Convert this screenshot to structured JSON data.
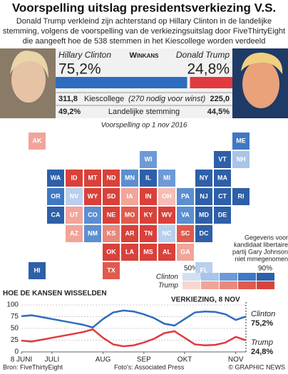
{
  "header": {
    "title": "Voorspelling uitslag presidentsverkiezing V.S.",
    "subtitle": [
      "Donald Trump verkleind zijn achterstand op Hillary Clinton in de landelijke",
      "stemming, volgens de voorspelling van de verkiezingsuitslag door FiveThirtyEight",
      "die aangeeft hoe de 538 stemmen in het Kiescollege worden verdeeld"
    ]
  },
  "stats": {
    "heading": "Winkans",
    "clinton": {
      "name": "Hillary Clinton",
      "value": 75.2,
      "label": "75,2%",
      "color": "#2e6cc0",
      "electoral": "311,8",
      "popular": "49,2%"
    },
    "trump": {
      "name": "Donald Trump",
      "value": 24.8,
      "label": "24,8%",
      "color": "#e03a3e",
      "electoral": "225,0",
      "popular": "44,5%"
    },
    "electoral_label": "Kiescollege",
    "electoral_note": "(270 nodig voor winst)",
    "popular_label": "Landelijke stemming"
  },
  "map": {
    "title": "Voorspelling op 1 nov 2016",
    "watermark": "GRAPHIC NEWS",
    "note": [
      "Gegevens voor",
      "kandidaat libertaire",
      "partij Gary Johnson",
      "niet mmegenomen"
    ],
    "legend": {
      "low": "50%",
      "high": "90%",
      "clinton": "Clinton",
      "trump": "Trump"
    },
    "states": [
      {
        "label": "AK",
        "color": "#f2a49a"
      },
      {
        "label": "ME",
        "color": "#3f78c4"
      },
      {
        "label": "WI",
        "color": "#6d9ad6"
      },
      {
        "label": "VT",
        "color": "#2e5fa8"
      },
      {
        "label": "NH",
        "color": "#a9c4e8"
      },
      {
        "label": "WA",
        "color": "#2e5fa8"
      },
      {
        "label": "ID",
        "color": "#d9413a"
      },
      {
        "label": "MT",
        "color": "#d9413a"
      },
      {
        "label": "ND",
        "color": "#d9413a"
      },
      {
        "label": "MN",
        "color": "#5b8fd0"
      },
      {
        "label": "IL",
        "color": "#2e5fa8"
      },
      {
        "label": "MI",
        "color": "#6d9ad6"
      },
      {
        "label": "NY",
        "color": "#2e5fa8"
      },
      {
        "label": "MA",
        "color": "#2e5fa8"
      },
      {
        "label": "OR",
        "color": "#3f78c4"
      },
      {
        "label": "NV",
        "color": "#b9cfee"
      },
      {
        "label": "WY",
        "color": "#d9413a"
      },
      {
        "label": "SD",
        "color": "#d9413a"
      },
      {
        "label": "IA",
        "color": "#f2a49a"
      },
      {
        "label": "IN",
        "color": "#d9413a"
      },
      {
        "label": "OH",
        "color": "#f5bdb4"
      },
      {
        "label": "PA",
        "color": "#5b8fd0"
      },
      {
        "label": "NJ",
        "color": "#2e5fa8"
      },
      {
        "label": "CT",
        "color": "#2e5fa8"
      },
      {
        "label": "RI",
        "color": "#2e5fa8"
      },
      {
        "label": "CA",
        "color": "#2e5fa8"
      },
      {
        "label": "UT",
        "color": "#f2a49a"
      },
      {
        "label": "CO",
        "color": "#5b8fd0"
      },
      {
        "label": "NE",
        "color": "#d9413a"
      },
      {
        "label": "MO",
        "color": "#e05a4e"
      },
      {
        "label": "KY",
        "color": "#d9413a"
      },
      {
        "label": "WV",
        "color": "#d9413a"
      },
      {
        "label": "VA",
        "color": "#5b8fd0"
      },
      {
        "label": "MD",
        "color": "#2e5fa8"
      },
      {
        "label": "DE",
        "color": "#2e5fa8"
      },
      {
        "label": "AZ",
        "color": "#f2a49a"
      },
      {
        "label": "NM",
        "color": "#5b8fd0"
      },
      {
        "label": "KS",
        "color": "#e8887d"
      },
      {
        "label": "AR",
        "color": "#d9413a"
      },
      {
        "label": "TN",
        "color": "#d9413a"
      },
      {
        "label": "NC",
        "color": "#b9cfee"
      },
      {
        "label": "SC",
        "color": "#e05a4e"
      },
      {
        "label": "DC",
        "color": "#2e5fa8"
      },
      {
        "label": "OK",
        "color": "#d9413a"
      },
      {
        "label": "LA",
        "color": "#d9413a"
      },
      {
        "label": "MS",
        "color": "#d9413a"
      },
      {
        "label": "AL",
        "color": "#d9413a"
      },
      {
        "label": "GA",
        "color": "#f2a49a"
      },
      {
        "label": "HI",
        "color": "#2e5fa8"
      },
      {
        "label": "TX",
        "color": "#e05a4e"
      },
      {
        "label": "FL",
        "color": "#b9cfee"
      }
    ]
  },
  "chart_data": {
    "type": "line",
    "title": "HOE DE KANSEN WISSELDEN",
    "annotation": "VERKIEZING, 8 NOV",
    "categories": [
      "8 JUNI",
      null,
      null,
      "JULI",
      null,
      null,
      null,
      null,
      "AUG",
      null,
      null,
      null,
      "SEP",
      null,
      null,
      null,
      "OKT",
      null,
      null,
      null,
      null,
      "NOV",
      null
    ],
    "series": [
      {
        "name": "Clinton",
        "color": "#2e6cc0",
        "values": [
          76,
          78,
          74,
          70,
          66,
          62,
          58,
          52,
          70,
          84,
          88,
          86,
          80,
          72,
          60,
          56,
          70,
          84,
          86,
          85,
          80,
          68,
          75.2
        ],
        "value_labels": [
          null,
          null,
          null,
          null,
          null,
          null,
          null,
          null,
          null,
          null,
          null,
          null,
          null,
          null,
          null,
          null,
          null,
          null,
          null,
          null,
          null,
          null,
          "75,2%"
        ]
      },
      {
        "name": "Trump",
        "color": "#e03a3e",
        "values": [
          24,
          22,
          26,
          30,
          34,
          38,
          42,
          48,
          30,
          16,
          12,
          14,
          20,
          28,
          40,
          44,
          30,
          16,
          14,
          15,
          20,
          32,
          24.8
        ],
        "value_labels": [
          null,
          null,
          null,
          null,
          null,
          null,
          null,
          null,
          null,
          null,
          null,
          null,
          null,
          null,
          null,
          null,
          null,
          null,
          null,
          null,
          null,
          null,
          "24,8%"
        ]
      }
    ],
    "ylim": [
      0,
      100
    ],
    "yticks": [
      0,
      25,
      50,
      75,
      100
    ],
    "grid": true
  },
  "footer": {
    "source": "Bron: FiveThirtyEight",
    "photos": "Foto's: Associated Press",
    "credit": "© GRAPHIC NEWS"
  }
}
